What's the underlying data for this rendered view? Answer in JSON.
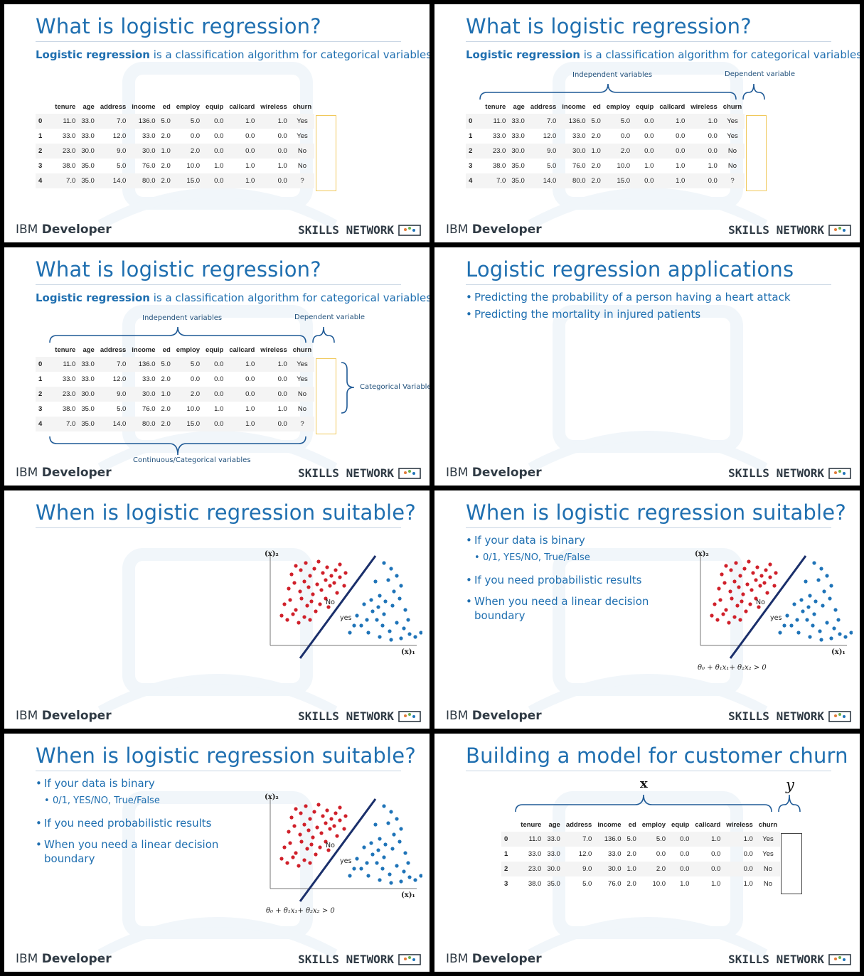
{
  "footer": {
    "ibm_prefix": "IBM",
    "ibm_suffix": "Developer",
    "skills": "SKILLS NETWORK"
  },
  "titles": {
    "what": "What is logistic regression?",
    "applications": "Logistic regression applications",
    "suitable": "When is logistic regression suitable?",
    "building": "Building a model for customer churn"
  },
  "subtitle": {
    "bold": "Logistic regression",
    "rest": " is a classification algorithm for categorical variables."
  },
  "labels": {
    "independent": "Independent variables",
    "dependent": "Dependent variable",
    "categorical": "Categorical Variable",
    "continuous": "Continuous/Categorical variables",
    "x": "x",
    "y": "y"
  },
  "applications": [
    "Predicting the probability of a person having a heart attack",
    "Predicting the mortality in injured patients"
  ],
  "suitable_bullets": {
    "binary": "If your data is binary",
    "binary_sub": "0/1, YES/NO,  True/False",
    "probabilistic": "If you need probabilistic results",
    "linear": "When you need a linear decision boundary"
  },
  "plot": {
    "x_label": "(x)₁",
    "y_label": "(x)₂",
    "no": "No",
    "yes": "yes",
    "formula": "θ₀ + θ₁x₁+ θ₂x₂ > 0"
  },
  "table": {
    "columns": [
      "tenure",
      "age",
      "address",
      "income",
      "ed",
      "employ",
      "equip",
      "callcard",
      "wireless",
      "churn"
    ],
    "rows": [
      {
        "idx": "0",
        "vals": [
          "11.0",
          "33.0",
          "7.0",
          "136.0",
          "5.0",
          "5.0",
          "0.0",
          "1.0",
          "1.0",
          "Yes"
        ]
      },
      {
        "idx": "1",
        "vals": [
          "33.0",
          "33.0",
          "12.0",
          "33.0",
          "2.0",
          "0.0",
          "0.0",
          "0.0",
          "0.0",
          "Yes"
        ]
      },
      {
        "idx": "2",
        "vals": [
          "23.0",
          "30.0",
          "9.0",
          "30.0",
          "1.0",
          "2.0",
          "0.0",
          "0.0",
          "0.0",
          "No"
        ]
      },
      {
        "idx": "3",
        "vals": [
          "38.0",
          "35.0",
          "5.0",
          "76.0",
          "2.0",
          "10.0",
          "1.0",
          "1.0",
          "1.0",
          "No"
        ]
      },
      {
        "idx": "4",
        "vals": [
          "7.0",
          "35.0",
          "14.0",
          "80.0",
          "2.0",
          "15.0",
          "0.0",
          "1.0",
          "0.0",
          "?"
        ]
      }
    ]
  },
  "colors": {
    "title_blue": "#1f6fb0",
    "red_points": "#d0202a",
    "blue_points": "#1f74b8",
    "highlight": "#f0c85a"
  }
}
